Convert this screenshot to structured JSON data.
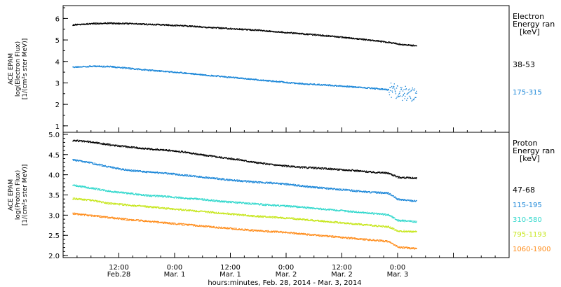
{
  "xaxis": {
    "title": "hours:minutes, Feb. 28, 2014 - Mar.  3, 2014",
    "ticks": [
      {
        "h": 12,
        "time": "12:00",
        "date": "Feb.28"
      },
      {
        "h": 24,
        "time": "0:00",
        "date": "Mar. 1"
      },
      {
        "h": 36,
        "time": "12:00",
        "date": "Mar. 1"
      },
      {
        "h": 48,
        "time": "0:00",
        "date": "Mar. 2"
      },
      {
        "h": 60,
        "time": "12:00",
        "date": "Mar. 2"
      },
      {
        "h": 72,
        "time": "0:00",
        "date": "Mar. 3"
      }
    ]
  },
  "chart_data": [
    {
      "type": "scatter",
      "ylabel": [
        "ACE EPAM",
        "log(Electron Flux)",
        "[1/(cm²s ster MeV)]"
      ],
      "ylim": [
        0.7,
        6.6
      ],
      "yticks": [
        1,
        2,
        3,
        4,
        5,
        6
      ],
      "minor_step": 0.5,
      "legend_title": [
        "Electron",
        "Energy ran",
        "[keV]"
      ],
      "series": [
        {
          "name": "38-53",
          "color": "#000000",
          "points": [
            [
              2,
              5.72
            ],
            [
              6,
              5.78
            ],
            [
              10,
              5.8
            ],
            [
              14,
              5.78
            ],
            [
              18,
              5.75
            ],
            [
              22,
              5.72
            ],
            [
              26,
              5.68
            ],
            [
              30,
              5.62
            ],
            [
              34,
              5.57
            ],
            [
              38,
              5.52
            ],
            [
              42,
              5.47
            ],
            [
              46,
              5.4
            ],
            [
              50,
              5.33
            ],
            [
              54,
              5.26
            ],
            [
              58,
              5.19
            ],
            [
              62,
              5.1
            ],
            [
              66,
              5.01
            ],
            [
              70,
              4.91
            ],
            [
              73,
              4.8
            ],
            [
              76,
              4.75
            ]
          ]
        },
        {
          "name": "175-315",
          "color": "#1a86d8",
          "scatter_tail": true,
          "points": [
            [
              2,
              3.75
            ],
            [
              6,
              3.8
            ],
            [
              10,
              3.78
            ],
            [
              14,
              3.7
            ],
            [
              18,
              3.62
            ],
            [
              22,
              3.55
            ],
            [
              26,
              3.48
            ],
            [
              30,
              3.4
            ],
            [
              34,
              3.32
            ],
            [
              38,
              3.24
            ],
            [
              42,
              3.16
            ],
            [
              46,
              3.08
            ],
            [
              50,
              3.0
            ],
            [
              54,
              2.95
            ],
            [
              58,
              2.9
            ],
            [
              62,
              2.84
            ],
            [
              66,
              2.78
            ],
            [
              70,
              2.7
            ],
            [
              73,
              2.55
            ],
            [
              76,
              2.4
            ]
          ]
        }
      ]
    },
    {
      "type": "scatter",
      "ylabel": [
        "ACE EPAM",
        "log(Proton Flux)",
        "[1/(cm²s ster MeV)]"
      ],
      "ylim": [
        1.95,
        5.05
      ],
      "yticks": [
        2.0,
        2.5,
        3.0,
        3.5,
        4.0,
        4.5,
        5.0
      ],
      "minor_step": 0.1,
      "legend_title": [
        "Proton",
        "Energy ran",
        "[keV]"
      ],
      "series": [
        {
          "name": "47-68",
          "color": "#000000",
          "points": [
            [
              2,
              4.86
            ],
            [
              6,
              4.82
            ],
            [
              10,
              4.75
            ],
            [
              14,
              4.7
            ],
            [
              18,
              4.65
            ],
            [
              22,
              4.62
            ],
            [
              26,
              4.57
            ],
            [
              30,
              4.5
            ],
            [
              34,
              4.44
            ],
            [
              38,
              4.38
            ],
            [
              42,
              4.3
            ],
            [
              46,
              4.25
            ],
            [
              50,
              4.2
            ],
            [
              54,
              4.18
            ],
            [
              58,
              4.15
            ],
            [
              62,
              4.12
            ],
            [
              66,
              4.08
            ],
            [
              70,
              4.05
            ],
            [
              72,
              3.95
            ],
            [
              76,
              3.92
            ]
          ]
        },
        {
          "name": "115-195",
          "color": "#1a86d8",
          "points": [
            [
              2,
              4.38
            ],
            [
              6,
              4.3
            ],
            [
              10,
              4.2
            ],
            [
              14,
              4.12
            ],
            [
              18,
              4.08
            ],
            [
              22,
              4.05
            ],
            [
              26,
              4.0
            ],
            [
              30,
              3.95
            ],
            [
              34,
              3.9
            ],
            [
              38,
              3.86
            ],
            [
              42,
              3.82
            ],
            [
              46,
              3.8
            ],
            [
              50,
              3.75
            ],
            [
              54,
              3.7
            ],
            [
              58,
              3.66
            ],
            [
              62,
              3.62
            ],
            [
              66,
              3.58
            ],
            [
              70,
              3.55
            ],
            [
              72,
              3.4
            ],
            [
              76,
              3.36
            ]
          ]
        },
        {
          "name": "310-580",
          "color": "#30d8cc",
          "points": [
            [
              2,
              3.75
            ],
            [
              6,
              3.68
            ],
            [
              10,
              3.6
            ],
            [
              14,
              3.55
            ],
            [
              18,
              3.5
            ],
            [
              22,
              3.47
            ],
            [
              26,
              3.43
            ],
            [
              30,
              3.4
            ],
            [
              34,
              3.35
            ],
            [
              38,
              3.32
            ],
            [
              42,
              3.28
            ],
            [
              46,
              3.25
            ],
            [
              50,
              3.22
            ],
            [
              54,
              3.18
            ],
            [
              58,
              3.14
            ],
            [
              62,
              3.1
            ],
            [
              66,
              3.06
            ],
            [
              70,
              3.02
            ],
            [
              72,
              2.88
            ],
            [
              76,
              2.85
            ]
          ]
        },
        {
          "name": "795-1193",
          "color": "#c6e61a",
          "points": [
            [
              2,
              3.42
            ],
            [
              6,
              3.38
            ],
            [
              10,
              3.3
            ],
            [
              14,
              3.26
            ],
            [
              18,
              3.22
            ],
            [
              22,
              3.18
            ],
            [
              26,
              3.14
            ],
            [
              30,
              3.1
            ],
            [
              34,
              3.06
            ],
            [
              38,
              3.02
            ],
            [
              42,
              2.98
            ],
            [
              46,
              2.95
            ],
            [
              50,
              2.92
            ],
            [
              54,
              2.88
            ],
            [
              58,
              2.84
            ],
            [
              62,
              2.8
            ],
            [
              66,
              2.76
            ],
            [
              70,
              2.72
            ],
            [
              72,
              2.62
            ],
            [
              76,
              2.6
            ]
          ]
        },
        {
          "name": "1060-1900",
          "color": "#ff8c1a",
          "points": [
            [
              2,
              3.05
            ],
            [
              6,
              3.0
            ],
            [
              10,
              2.95
            ],
            [
              14,
              2.9
            ],
            [
              18,
              2.86
            ],
            [
              22,
              2.82
            ],
            [
              26,
              2.78
            ],
            [
              30,
              2.74
            ],
            [
              34,
              2.7
            ],
            [
              38,
              2.66
            ],
            [
              42,
              2.62
            ],
            [
              46,
              2.6
            ],
            [
              50,
              2.56
            ],
            [
              54,
              2.52
            ],
            [
              58,
              2.48
            ],
            [
              62,
              2.44
            ],
            [
              66,
              2.4
            ],
            [
              70,
              2.36
            ],
            [
              72,
              2.22
            ],
            [
              76,
              2.18
            ]
          ]
        }
      ]
    }
  ]
}
